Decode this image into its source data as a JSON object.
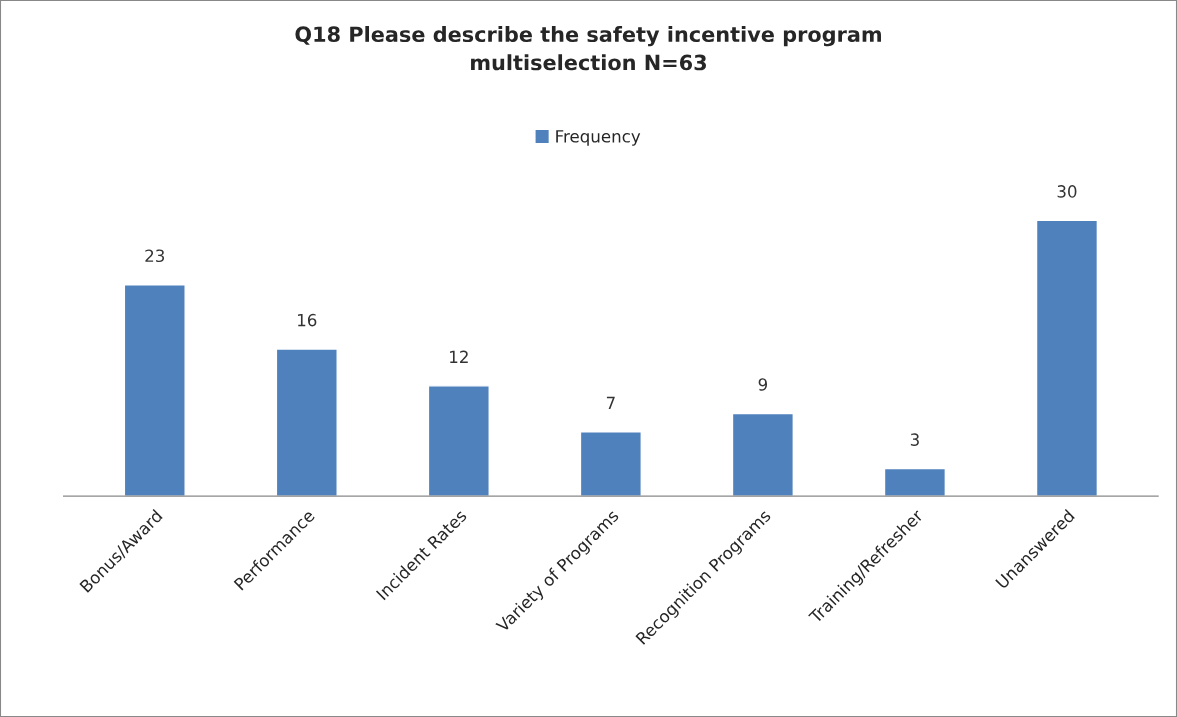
{
  "chart_data": {
    "type": "bar",
    "title": "Q18 Please describe the safety incentive program\nmultiselection N=63",
    "categories": [
      "Bonus/Award",
      "Performance",
      "Incident Rates",
      "Variety of Programs",
      "Recognition Programs",
      "Training/Refresher",
      "Unanswered"
    ],
    "series": [
      {
        "name": "Frequency",
        "color": "#4f81bd",
        "values": [
          23,
          16,
          12,
          7,
          9,
          3,
          30
        ]
      }
    ],
    "data_labels": true,
    "legend": "top",
    "grid": false
  }
}
